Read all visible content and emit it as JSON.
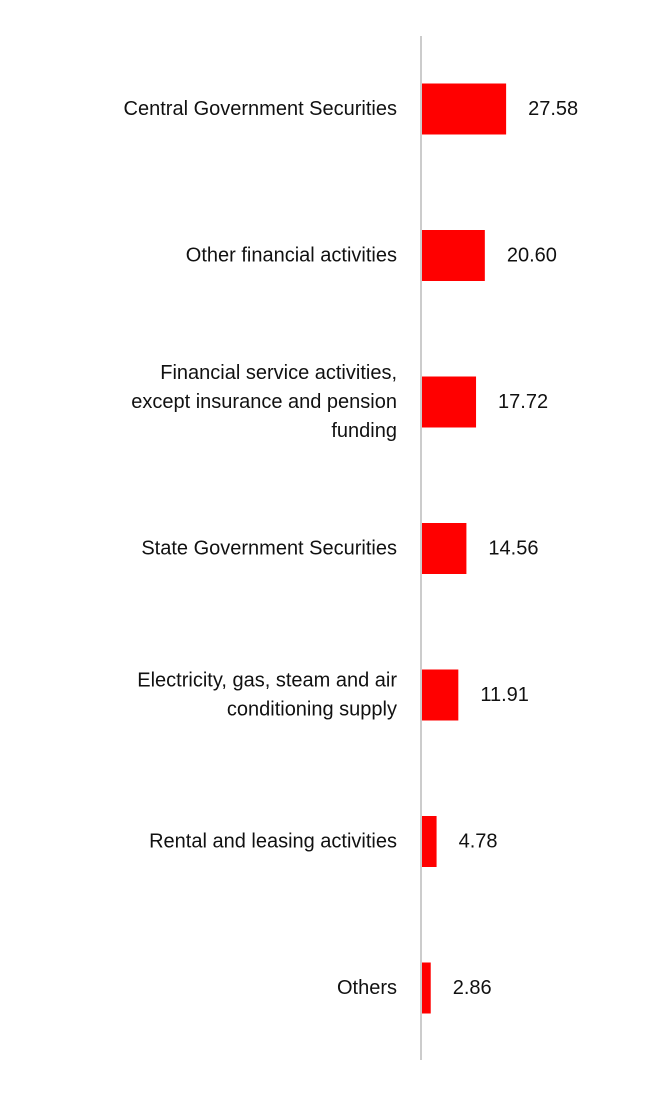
{
  "chart_data": {
    "type": "bar",
    "orientation": "horizontal",
    "categories": [
      "Central Government Securities",
      "Other financial activities",
      "Financial service activities, except insurance and pension funding",
      "State Government Securities",
      "Electricity, gas, steam and air conditioning supply",
      "Rental and leasing activities",
      "Others"
    ],
    "category_lines": [
      [
        "Central Government Securities"
      ],
      [
        "Other financial activities"
      ],
      [
        "Financial service activities,",
        "except insurance and pension",
        "funding"
      ],
      [
        "State Government Securities"
      ],
      [
        "Electricity, gas, steam and air",
        "conditioning supply"
      ],
      [
        "Rental and leasing activities"
      ],
      [
        "Others"
      ]
    ],
    "values": [
      27.58,
      20.6,
      17.72,
      14.56,
      11.91,
      4.78,
      2.86
    ],
    "value_labels": [
      "27.58",
      "20.60",
      "17.72",
      "14.56",
      "11.91",
      "4.78",
      "2.86"
    ],
    "title": "",
    "xlabel": "",
    "ylabel": "",
    "xlim": [
      0,
      100
    ],
    "grid": false,
    "legend": "none",
    "bar_color": "#ff0000",
    "axis_color": "#cccccc"
  }
}
